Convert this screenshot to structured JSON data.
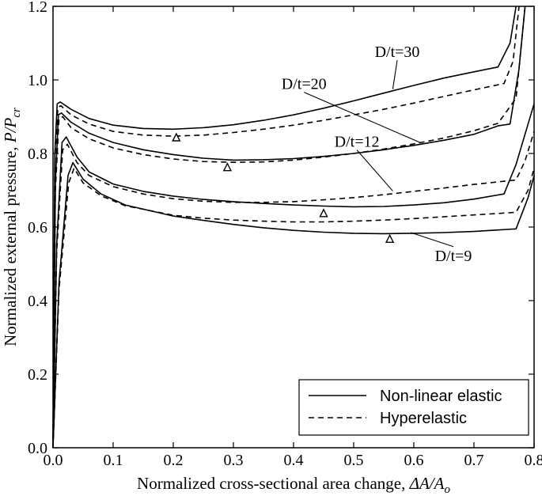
{
  "chart_data": {
    "type": "line",
    "xlabel": "Normalized cross-sectional area change, ",
    "xlabel_math": "ΔA/A",
    "xlabel_sub": "o",
    "ylabel": "Normalized external pressure, ",
    "ylabel_math": "P/P",
    "ylabel_sub": "cr",
    "xlim": [
      0.0,
      0.8
    ],
    "ylim": [
      0.0,
      1.2
    ],
    "xticks": [
      "0.0",
      "0.1",
      "0.2",
      "0.3",
      "0.4",
      "0.5",
      "0.6",
      "0.7",
      "0.8"
    ],
    "yticks": [
      "0.0",
      "0.2",
      "0.4",
      "0.6",
      "0.8",
      "1.0",
      "1.2"
    ],
    "legend": {
      "position": "lower-right",
      "entries": [
        {
          "name": "Non-linear elastic",
          "style": "solid"
        },
        {
          "name": "Hyperelastic",
          "style": "dashed"
        }
      ]
    },
    "series": [
      {
        "case": "D/t=30",
        "model": "Non-linear elastic",
        "style": "solid",
        "points": [
          [
            0,
            0
          ],
          [
            0.003,
            0.8
          ],
          [
            0.007,
            0.935
          ],
          [
            0.012,
            0.94
          ],
          [
            0.03,
            0.92
          ],
          [
            0.06,
            0.895
          ],
          [
            0.1,
            0.877
          ],
          [
            0.15,
            0.868
          ],
          [
            0.2,
            0.866
          ],
          [
            0.25,
            0.87
          ],
          [
            0.3,
            0.878
          ],
          [
            0.35,
            0.89
          ],
          [
            0.4,
            0.905
          ],
          [
            0.45,
            0.923
          ],
          [
            0.5,
            0.943
          ],
          [
            0.55,
            0.964
          ],
          [
            0.6,
            0.985
          ],
          [
            0.65,
            1.005
          ],
          [
            0.7,
            1.022
          ],
          [
            0.74,
            1.035
          ],
          [
            0.76,
            1.1
          ],
          [
            0.77,
            1.2
          ]
        ]
      },
      {
        "case": "D/t=30",
        "model": "Hyperelastic",
        "style": "dashed",
        "points": [
          [
            0,
            0
          ],
          [
            0.003,
            0.78
          ],
          [
            0.008,
            0.925
          ],
          [
            0.013,
            0.93
          ],
          [
            0.03,
            0.905
          ],
          [
            0.06,
            0.88
          ],
          [
            0.1,
            0.86
          ],
          [
            0.15,
            0.85
          ],
          [
            0.2,
            0.847
          ],
          [
            0.25,
            0.85
          ],
          [
            0.3,
            0.857
          ],
          [
            0.35,
            0.866
          ],
          [
            0.4,
            0.877
          ],
          [
            0.45,
            0.89
          ],
          [
            0.5,
            0.905
          ],
          [
            0.55,
            0.92
          ],
          [
            0.6,
            0.937
          ],
          [
            0.65,
            0.955
          ],
          [
            0.7,
            0.973
          ],
          [
            0.75,
            0.99
          ],
          [
            0.765,
            1.05
          ],
          [
            0.775,
            1.2
          ]
        ]
      },
      {
        "case": "D/t=20",
        "model": "Non-linear elastic",
        "style": "solid",
        "points": [
          [
            0,
            0
          ],
          [
            0.004,
            0.72
          ],
          [
            0.009,
            0.905
          ],
          [
            0.014,
            0.91
          ],
          [
            0.03,
            0.885
          ],
          [
            0.06,
            0.855
          ],
          [
            0.1,
            0.83
          ],
          [
            0.15,
            0.81
          ],
          [
            0.2,
            0.797
          ],
          [
            0.25,
            0.787
          ],
          [
            0.3,
            0.782
          ],
          [
            0.35,
            0.783
          ],
          [
            0.4,
            0.786
          ],
          [
            0.45,
            0.792
          ],
          [
            0.5,
            0.8
          ],
          [
            0.55,
            0.81
          ],
          [
            0.6,
            0.822
          ],
          [
            0.65,
            0.836
          ],
          [
            0.7,
            0.852
          ],
          [
            0.74,
            0.875
          ],
          [
            0.76,
            0.88
          ],
          [
            0.775,
            1.03
          ],
          [
            0.785,
            1.2
          ]
        ]
      },
      {
        "case": "D/t=20",
        "model": "Hyperelastic",
        "style": "dashed",
        "points": [
          [
            0,
            0
          ],
          [
            0.004,
            0.7
          ],
          [
            0.01,
            0.895
          ],
          [
            0.016,
            0.9
          ],
          [
            0.03,
            0.87
          ],
          [
            0.06,
            0.84
          ],
          [
            0.1,
            0.815
          ],
          [
            0.15,
            0.797
          ],
          [
            0.2,
            0.785
          ],
          [
            0.25,
            0.778
          ],
          [
            0.3,
            0.776
          ],
          [
            0.35,
            0.777
          ],
          [
            0.4,
            0.782
          ],
          [
            0.45,
            0.79
          ],
          [
            0.5,
            0.8
          ],
          [
            0.55,
            0.812
          ],
          [
            0.6,
            0.826
          ],
          [
            0.65,
            0.842
          ],
          [
            0.7,
            0.862
          ],
          [
            0.74,
            0.882
          ],
          [
            0.77,
            0.95
          ],
          [
            0.785,
            1.2
          ]
        ]
      },
      {
        "case": "D/t=12",
        "model": "Non-linear elastic",
        "style": "solid",
        "points": [
          [
            0,
            0
          ],
          [
            0.006,
            0.55
          ],
          [
            0.015,
            0.83
          ],
          [
            0.022,
            0.845
          ],
          [
            0.04,
            0.79
          ],
          [
            0.06,
            0.75
          ],
          [
            0.1,
            0.717
          ],
          [
            0.15,
            0.697
          ],
          [
            0.2,
            0.684
          ],
          [
            0.25,
            0.675
          ],
          [
            0.3,
            0.669
          ],
          [
            0.35,
            0.664
          ],
          [
            0.4,
            0.66
          ],
          [
            0.45,
            0.657
          ],
          [
            0.5,
            0.655
          ],
          [
            0.55,
            0.656
          ],
          [
            0.6,
            0.66
          ],
          [
            0.65,
            0.666
          ],
          [
            0.7,
            0.676
          ],
          [
            0.75,
            0.69
          ],
          [
            0.77,
            0.77
          ],
          [
            0.8,
            0.935
          ]
        ]
      },
      {
        "case": "D/t=12",
        "model": "Hyperelastic",
        "style": "dashed",
        "points": [
          [
            0,
            0
          ],
          [
            0.006,
            0.53
          ],
          [
            0.016,
            0.81
          ],
          [
            0.024,
            0.825
          ],
          [
            0.04,
            0.775
          ],
          [
            0.06,
            0.74
          ],
          [
            0.1,
            0.71
          ],
          [
            0.15,
            0.69
          ],
          [
            0.2,
            0.677
          ],
          [
            0.25,
            0.67
          ],
          [
            0.3,
            0.667
          ],
          [
            0.35,
            0.667
          ],
          [
            0.4,
            0.669
          ],
          [
            0.45,
            0.674
          ],
          [
            0.5,
            0.68
          ],
          [
            0.55,
            0.688
          ],
          [
            0.6,
            0.697
          ],
          [
            0.65,
            0.706
          ],
          [
            0.7,
            0.716
          ],
          [
            0.77,
            0.728
          ],
          [
            0.785,
            0.78
          ],
          [
            0.8,
            0.86
          ]
        ]
      },
      {
        "case": "D/t=9",
        "model": "Non-linear elastic",
        "style": "solid",
        "points": [
          [
            0,
            0
          ],
          [
            0.01,
            0.45
          ],
          [
            0.025,
            0.74
          ],
          [
            0.033,
            0.775
          ],
          [
            0.05,
            0.73
          ],
          [
            0.08,
            0.69
          ],
          [
            0.12,
            0.66
          ],
          [
            0.2,
            0.63
          ],
          [
            0.25,
            0.618
          ],
          [
            0.3,
            0.607
          ],
          [
            0.35,
            0.598
          ],
          [
            0.4,
            0.591
          ],
          [
            0.45,
            0.586
          ],
          [
            0.5,
            0.583
          ],
          [
            0.55,
            0.582
          ],
          [
            0.6,
            0.583
          ],
          [
            0.65,
            0.585
          ],
          [
            0.7,
            0.588
          ],
          [
            0.77,
            0.595
          ],
          [
            0.79,
            0.68
          ],
          [
            0.8,
            0.74
          ]
        ]
      },
      {
        "case": "D/t=9",
        "model": "Hyperelastic",
        "style": "dashed",
        "points": [
          [
            0,
            0
          ],
          [
            0.01,
            0.43
          ],
          [
            0.026,
            0.72
          ],
          [
            0.035,
            0.76
          ],
          [
            0.05,
            0.72
          ],
          [
            0.08,
            0.685
          ],
          [
            0.12,
            0.658
          ],
          [
            0.2,
            0.632
          ],
          [
            0.25,
            0.624
          ],
          [
            0.3,
            0.619
          ],
          [
            0.35,
            0.616
          ],
          [
            0.4,
            0.614
          ],
          [
            0.45,
            0.614
          ],
          [
            0.5,
            0.616
          ],
          [
            0.55,
            0.619
          ],
          [
            0.6,
            0.623
          ],
          [
            0.65,
            0.628
          ],
          [
            0.7,
            0.633
          ],
          [
            0.77,
            0.64
          ],
          [
            0.79,
            0.7
          ],
          [
            0.8,
            0.76
          ]
        ]
      }
    ],
    "markers": [
      {
        "x": 0.205,
        "y": 0.843,
        "symbol": "triangle-open"
      },
      {
        "x": 0.29,
        "y": 0.762,
        "symbol": "triangle-open"
      },
      {
        "x": 0.45,
        "y": 0.637,
        "symbol": "triangle-open"
      },
      {
        "x": 0.56,
        "y": 0.567,
        "symbol": "triangle-open"
      }
    ],
    "annotations": [
      {
        "text": "D/t=30",
        "x": 0.535,
        "y": 1.062,
        "arrow_to": [
          0.565,
          0.975
        ]
      },
      {
        "text": "D/t=20",
        "x": 0.38,
        "y": 0.975,
        "arrow_to": [
          0.61,
          0.83
        ]
      },
      {
        "text": "D/t=12",
        "x": 0.468,
        "y": 0.818,
        "arrow_to": [
          0.565,
          0.698
        ]
      },
      {
        "text": "D/t=9",
        "x": 0.635,
        "y": 0.508,
        "arrow_to": [
          0.595,
          0.585
        ]
      }
    ]
  }
}
